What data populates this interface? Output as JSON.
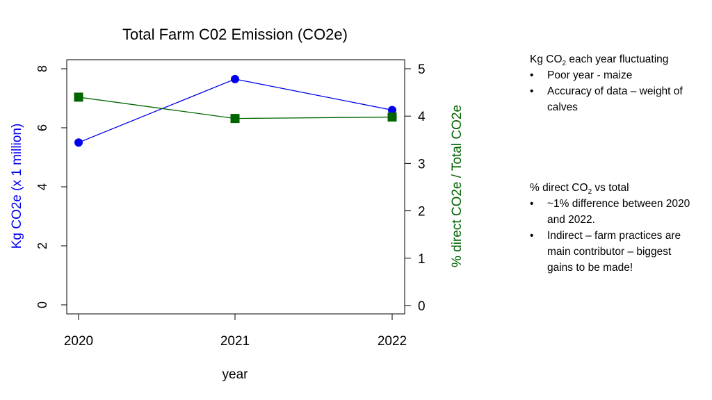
{
  "chart_data": {
    "type": "line",
    "title": "Total Farm C02 Emission (CO2e)",
    "xlabel": "year",
    "ylabel_left": "Kg CO2e (x 1 million)",
    "ylabel_right": "% direct CO2e / Total CO2e",
    "categories": [
      "2020",
      "2021",
      "2022"
    ],
    "x": [
      2020,
      2021,
      2022
    ],
    "left_ylim": [
      0,
      8
    ],
    "left_ticks": [
      "0",
      "2",
      "4",
      "6",
      "8"
    ],
    "right_ylim": [
      0,
      5
    ],
    "right_ticks": [
      "0",
      "1",
      "2",
      "3",
      "4",
      "5"
    ],
    "grid": false,
    "series": [
      {
        "axis": "left",
        "color": "#0000ee",
        "marker": "circle",
        "values": [
          5.5,
          7.65,
          6.6
        ]
      },
      {
        "axis": "right",
        "color": "#006400",
        "marker": "square",
        "values": [
          4.4,
          3.95,
          3.98
        ]
      }
    ]
  },
  "notes": {
    "block1": {
      "head_pre": "Kg CO",
      "head_sub": "2",
      "head_post": " each year fluctuating",
      "items": [
        "Poor year - maize",
        "Accuracy of data – weight of calves"
      ]
    },
    "block2": {
      "head_pre": "% direct CO",
      "head_sub": "2",
      "head_post": " vs total",
      "items": [
        "~1% difference between 2020 and 2022.",
        "Indirect – farm practices are main contributor – biggest gains to be made!"
      ]
    }
  }
}
